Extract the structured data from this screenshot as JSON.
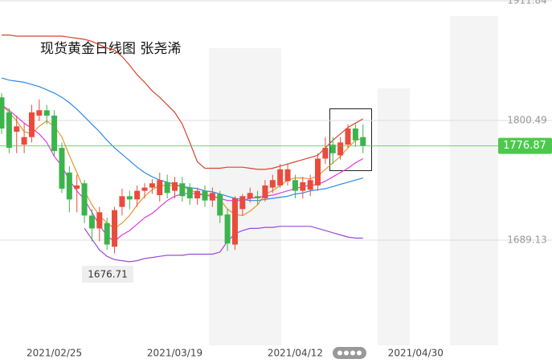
{
  "chart_data": {
    "type": "candlestick",
    "title": "现货黄金日线图 张尧浠",
    "categories": [
      null,
      null,
      null,
      null,
      null,
      null,
      null,
      "2021/02/25",
      null,
      null,
      null,
      null,
      null,
      null,
      null,
      null,
      null,
      null,
      null,
      null,
      null,
      null,
      null,
      "2021/03/19",
      null,
      null,
      null,
      null,
      null,
      null,
      null,
      null,
      null,
      null,
      null,
      null,
      null,
      null,
      null,
      "2021/04/12",
      null,
      null,
      null,
      null,
      null,
      null,
      null,
      null,
      null,
      null,
      null,
      null,
      null,
      null,
      null,
      "2021/04/30"
    ],
    "open": [
      1822,
      1808,
      1790,
      1778,
      1785,
      1805,
      1810,
      1805,
      1775,
      1752,
      1737,
      1742,
      1712,
      1700,
      1705,
      1683,
      1720,
      1730,
      1727,
      1735,
      1738,
      1731,
      1743,
      1735,
      1742,
      1738,
      1728,
      1735,
      1726,
      1732,
      1713,
      1685,
      1718,
      1728,
      1730,
      1728,
      1738,
      1740,
      1744,
      1745,
      1735,
      1736,
      1740,
      1765,
      1778,
      1768,
      1778,
      1793,
      1785,
      null,
      null,
      null,
      null,
      null,
      null,
      null
    ],
    "high": [
      1826,
      1812,
      1805,
      1798,
      1815,
      1820,
      1815,
      1810,
      1780,
      1758,
      1750,
      1745,
      1718,
      1720,
      1710,
      1720,
      1737,
      1735,
      1740,
      1742,
      1746,
      1752,
      1750,
      1748,
      1748,
      1742,
      1738,
      1740,
      1738,
      1735,
      1718,
      1730,
      1732,
      1738,
      1735,
      1745,
      1750,
      1760,
      1760,
      1750,
      1748,
      1750,
      1770,
      1785,
      1785,
      1785,
      1797,
      1797,
      1797,
      null,
      null,
      null,
      null,
      null,
      null,
      null
    ],
    "low": [
      1788,
      1770,
      1770,
      1770,
      1780,
      1800,
      1797,
      1768,
      1733,
      1715,
      1715,
      1705,
      1688,
      1688,
      1680,
      1676.71,
      1712,
      1718,
      1720,
      1728,
      1732,
      1725,
      1728,
      1728,
      1725,
      1722,
      1722,
      1720,
      1720,
      1705,
      1679,
      1680,
      1712,
      1724,
      1722,
      1725,
      1733,
      1738,
      1740,
      1728,
      1728,
      1730,
      1735,
      1760,
      1760,
      1764,
      1775,
      1776,
      1770,
      null,
      null,
      null,
      null,
      null,
      null,
      null
    ],
    "close": [
      1793,
      1775,
      1795,
      1785,
      1808,
      1810,
      1805,
      1772,
      1737,
      1727,
      1740,
      1712,
      1700,
      1715,
      1685,
      1717,
      1730,
      1727,
      1735,
      1738,
      1742,
      1745,
      1733,
      1743,
      1730,
      1728,
      1735,
      1726,
      1733,
      1712,
      1686,
      1728,
      1730,
      1733,
      1728,
      1740,
      1745,
      1755,
      1755,
      1735,
      1743,
      1745,
      1765,
      1775,
      1770,
      1780,
      1793,
      1782,
      1776.87,
      null,
      null,
      null,
      null,
      null,
      null,
      null
    ],
    "up_color": "#e94b3c",
    "down_color": "#3cb44c",
    "lines": [
      {
        "color": "#e8952c",
        "values": [
          1815,
          1808,
          1800,
          1790,
          1788,
          1795,
          1800,
          1795,
          1785,
          1768,
          1752,
          1735,
          1722,
          1712,
          1705,
          1700,
          1705,
          1712,
          1722,
          1730,
          1736,
          1740,
          1740,
          1740,
          1739,
          1736,
          1733,
          1731,
          1731,
          1727,
          1718,
          1713,
          1712,
          1716,
          1722,
          1732,
          1735,
          1740,
          1745,
          1747,
          1747,
          1746,
          1749,
          1755,
          1761,
          1767,
          1775,
          1782,
          1784,
          null,
          null,
          null,
          null,
          null,
          null,
          null
        ]
      },
      {
        "color": "#2a8ae6",
        "values": [
          1840,
          1838,
          1837,
          1836,
          1834,
          1832,
          1829,
          1826,
          1822,
          1817,
          1811,
          1804,
          1797,
          1790,
          1782,
          1775,
          1769,
          1763,
          1757,
          1752,
          1748,
          1745,
          1743,
          1741,
          1739,
          1738,
          1737,
          1735,
          1734,
          1732,
          1730,
          1728,
          1727,
          1726,
          1726,
          1727,
          1728,
          1729,
          1730,
          1732,
          1733,
          1735,
          1736,
          1737,
          1739,
          1741,
          1743,
          1745,
          1747,
          null,
          null,
          null,
          null,
          null,
          null,
          null
        ]
      },
      {
        "color": "#e23ae0",
        "values": [
          1815,
          1810,
          1804,
          1798,
          1793,
          1788,
          1780,
          1767,
          1758,
          1745,
          1735,
          1727,
          1715,
          1703,
          1693,
          1688,
          1694,
          1698,
          1704,
          1710,
          1714,
          1720,
          1726,
          1730,
          1732,
          1733,
          1732,
          1731,
          1730,
          1728,
          1726,
          1726,
          1726,
          1728,
          1729,
          1730,
          1731,
          1733,
          1735,
          1737,
          1739,
          1740,
          1741,
          1744,
          1748,
          1752,
          1756,
          1761,
          1765,
          null,
          null,
          null,
          null,
          null,
          null,
          null
        ]
      },
      {
        "color": "#d9442e",
        "values": [
          1880,
          1880,
          1879,
          1879,
          1879,
          1879,
          1879,
          1879,
          1879,
          1878,
          1877,
          1876,
          1874,
          1871,
          1868,
          1866,
          1860,
          1852,
          1843,
          1836,
          1828,
          1822,
          1815,
          1808,
          1797,
          1780,
          1762,
          1756,
          1756,
          1756,
          1757,
          1757,
          1757,
          1756,
          1755,
          1755,
          1756,
          1758,
          1760,
          1762,
          1764,
          1766,
          1768,
          1775,
          1782,
          1788,
          1794,
          1798,
          1802,
          null,
          null,
          null,
          null,
          null,
          null,
          null
        ]
      },
      {
        "color": "#9b4ad6",
        "values": [
          null,
          null,
          null,
          null,
          null,
          null,
          null,
          null,
          null,
          null,
          null,
          1700,
          1690,
          1680,
          1674,
          1671,
          1670,
          1669,
          1670,
          1672,
          1673,
          1674,
          1675,
          1675,
          1675,
          1676,
          1676,
          1676,
          1676,
          1678,
          1688,
          1695,
          1698,
          1700,
          1700,
          1701,
          1701,
          1702,
          1702,
          1702,
          1702,
          1702,
          1700,
          1698,
          1696,
          1694,
          1692,
          1691,
          1691,
          null,
          null,
          null,
          null,
          null,
          null,
          null
        ]
      }
    ],
    "ylim": [
      1591.2,
      1912.6
    ],
    "yticks": [
      1689.13,
      1800.49,
      1911.84
    ],
    "grid": true,
    "last_price": 1776.87,
    "last_color": "#4cc94c",
    "low_label": "1676.71"
  }
}
